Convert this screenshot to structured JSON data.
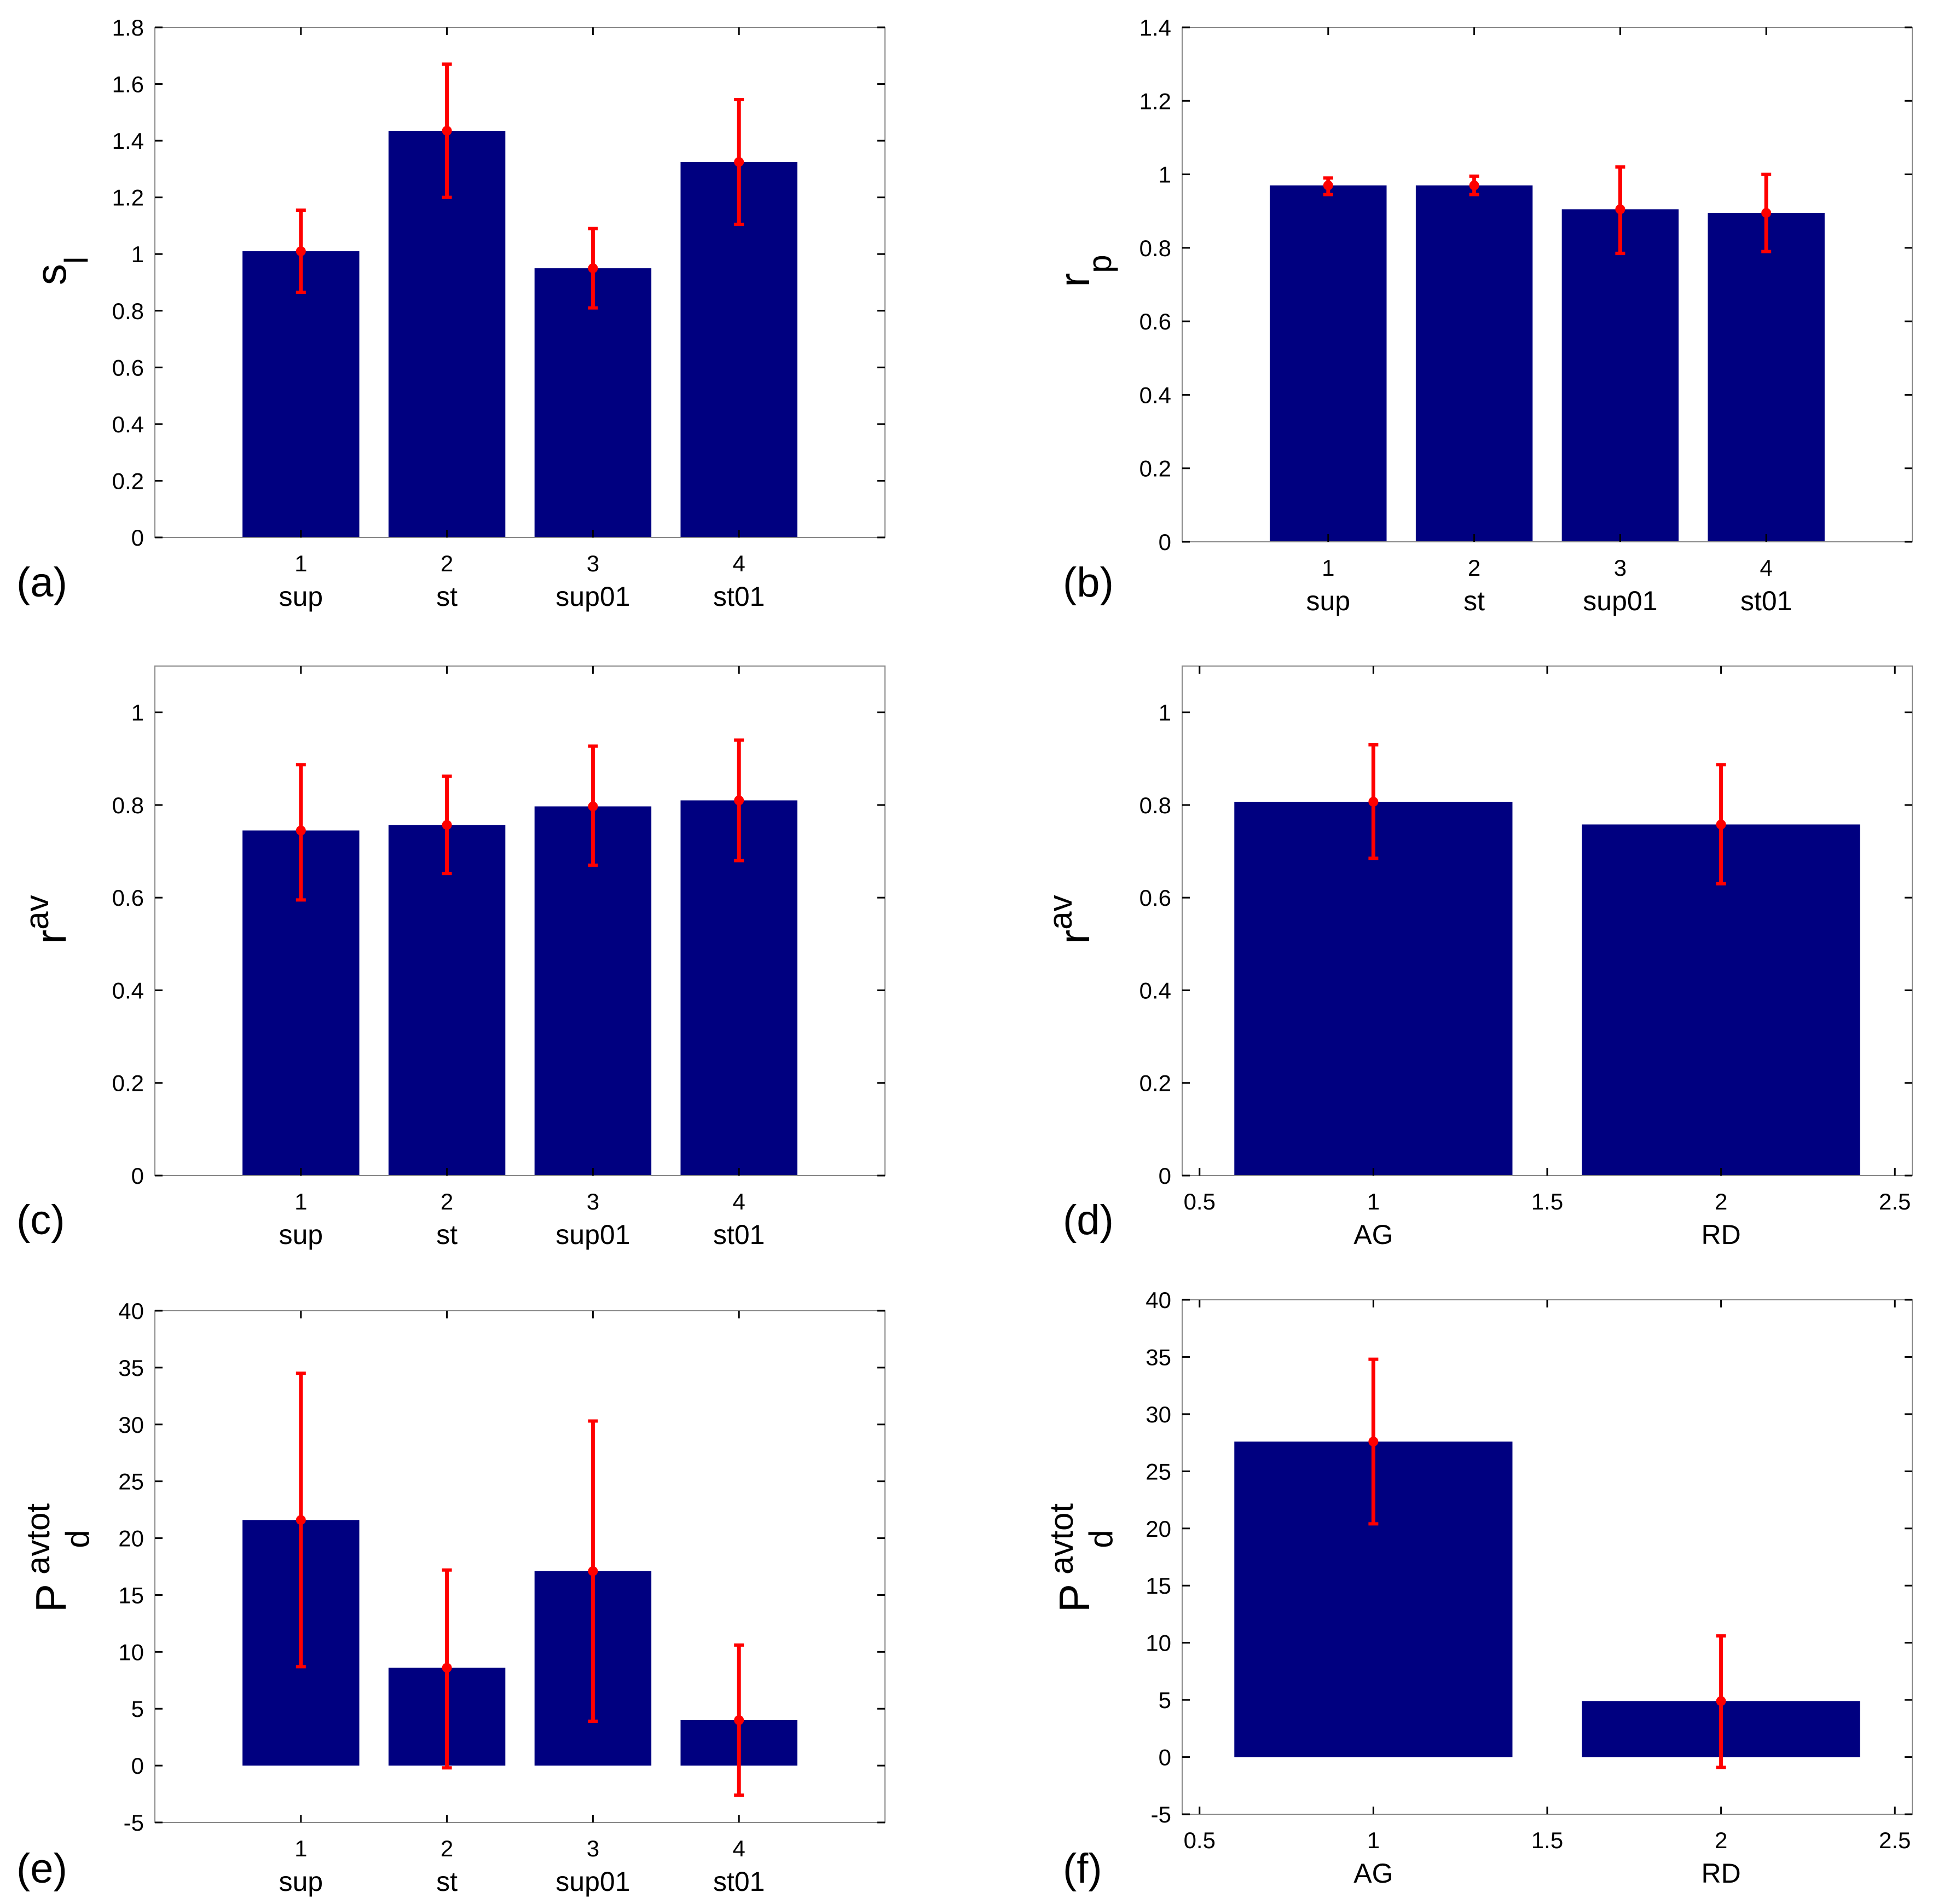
{
  "colors": {
    "bar": "#000080",
    "error": "#ff0000",
    "axes": "#000000",
    "background": "#ffffff"
  },
  "chart_data": [
    {
      "id": "a",
      "panel_label": "(a)",
      "type": "bar",
      "ylabel": {
        "main": "s",
        "sub": "l",
        "sup": ""
      },
      "xlim": [
        0,
        5
      ],
      "ylim": [
        0,
        1.8
      ],
      "yticks": [
        0,
        0.2,
        0.4,
        0.6,
        0.8,
        1,
        1.2,
        1.4,
        1.6,
        1.8
      ],
      "ytick_labels": [
        "0",
        "0.2",
        "0.4",
        "0.6",
        "0.8",
        "1",
        "1.2",
        "1.4",
        "1.6",
        "1.8"
      ],
      "x": [
        1,
        2,
        3,
        4
      ],
      "categories": [
        "sup",
        "st",
        "sup01",
        "st01"
      ],
      "xtick_labels": [
        "1",
        "2",
        "3",
        "4"
      ],
      "values": [
        1.01,
        1.435,
        0.95,
        1.325
      ],
      "err_low": [
        0.865,
        1.2,
        0.81,
        1.105
      ],
      "err_high": [
        1.155,
        1.67,
        1.09,
        1.545
      ]
    },
    {
      "id": "b",
      "panel_label": "(b)",
      "type": "bar",
      "ylabel": {
        "main": "r",
        "sub": "p",
        "sup": ""
      },
      "xlim": [
        0,
        5
      ],
      "ylim": [
        0,
        1.4
      ],
      "yticks": [
        0,
        0.2,
        0.4,
        0.6,
        0.8,
        1,
        1.2,
        1.4
      ],
      "ytick_labels": [
        "0",
        "0.2",
        "0.4",
        "0.6",
        "0.8",
        "1",
        "1.2",
        "1.4"
      ],
      "x": [
        1,
        2,
        3,
        4
      ],
      "categories": [
        "sup",
        "st",
        "sup01",
        "st01"
      ],
      "xtick_labels": [
        "1",
        "2",
        "3",
        "4"
      ],
      "values": [
        0.97,
        0.97,
        0.905,
        0.895
      ],
      "err_low": [
        0.945,
        0.945,
        0.785,
        0.79
      ],
      "err_high": [
        0.99,
        0.995,
        1.02,
        1.0
      ]
    },
    {
      "id": "c",
      "panel_label": "(c)",
      "type": "bar",
      "ylabel": {
        "main": "r",
        "sub": "",
        "sup": "av"
      },
      "xlim": [
        0,
        5
      ],
      "ylim": [
        0,
        1.1
      ],
      "yticks": [
        0,
        0.2,
        0.4,
        0.6,
        0.8,
        1
      ],
      "ytick_labels": [
        "0",
        "0.2",
        "0.4",
        "0.6",
        "0.8",
        "1"
      ],
      "x": [
        1,
        2,
        3,
        4
      ],
      "categories": [
        "sup",
        "st",
        "sup01",
        "st01"
      ],
      "xtick_labels": [
        "1",
        "2",
        "3",
        "4"
      ],
      "values": [
        0.745,
        0.757,
        0.797,
        0.81
      ],
      "err_low": [
        0.595,
        0.652,
        0.67,
        0.68
      ],
      "err_high": [
        0.887,
        0.862,
        0.927,
        0.94
      ]
    },
    {
      "id": "d",
      "panel_label": "(d)",
      "type": "bar",
      "ylabel": {
        "main": "r",
        "sub": "",
        "sup": "av"
      },
      "xlim": [
        0.45,
        2.55
      ],
      "ylim": [
        0,
        1.1
      ],
      "yticks": [
        0,
        0.2,
        0.4,
        0.6,
        0.8,
        1
      ],
      "ytick_labels": [
        "0",
        "0.2",
        "0.4",
        "0.6",
        "0.8",
        "1"
      ],
      "x": [
        1,
        2
      ],
      "categories": [
        "AG",
        "RD"
      ],
      "xticks": [
        0.5,
        1,
        1.5,
        2,
        2.5
      ],
      "xtick_labels": [
        "0.5",
        "1",
        "1.5",
        "2",
        "2.5"
      ],
      "values": [
        0.807,
        0.758
      ],
      "err_low": [
        0.685,
        0.63
      ],
      "err_high": [
        0.93,
        0.887
      ]
    },
    {
      "id": "e",
      "panel_label": "(e)",
      "type": "bar",
      "ylabel": {
        "main": "P",
        "sub": "d",
        "sup": "avtot"
      },
      "xlim": [
        0,
        5
      ],
      "ylim": [
        -5,
        40
      ],
      "yticks": [
        -5,
        0,
        5,
        10,
        15,
        20,
        25,
        30,
        35,
        40
      ],
      "ytick_labels": [
        "-5",
        "0",
        "5",
        "10",
        "15",
        "20",
        "25",
        "30",
        "35",
        "40"
      ],
      "x": [
        1,
        2,
        3,
        4
      ],
      "categories": [
        "sup",
        "st",
        "sup01",
        "st01"
      ],
      "xtick_labels": [
        "1",
        "2",
        "3",
        "4"
      ],
      "values": [
        21.6,
        8.6,
        17.1,
        4.0
      ],
      "err_low": [
        8.7,
        -0.2,
        3.9,
        -2.6
      ],
      "err_high": [
        34.5,
        17.2,
        30.3,
        10.6
      ]
    },
    {
      "id": "f",
      "panel_label": "(f)",
      "type": "bar",
      "ylabel": {
        "main": "P",
        "sub": "d",
        "sup": "avtot"
      },
      "xlim": [
        0.45,
        2.55
      ],
      "ylim": [
        -5,
        40
      ],
      "yticks": [
        -5,
        0,
        5,
        10,
        15,
        20,
        25,
        30,
        35,
        40
      ],
      "ytick_labels": [
        "-5",
        "0",
        "5",
        "10",
        "15",
        "20",
        "25",
        "30",
        "35",
        "40"
      ],
      "x": [
        1,
        2
      ],
      "categories": [
        "AG",
        "RD"
      ],
      "xticks": [
        0.5,
        1,
        1.5,
        2,
        2.5
      ],
      "xtick_labels": [
        "0.5",
        "1",
        "1.5",
        "2",
        "2.5"
      ],
      "values": [
        27.6,
        4.9
      ],
      "err_low": [
        20.4,
        -0.9
      ],
      "err_high": [
        34.8,
        10.6
      ]
    }
  ]
}
